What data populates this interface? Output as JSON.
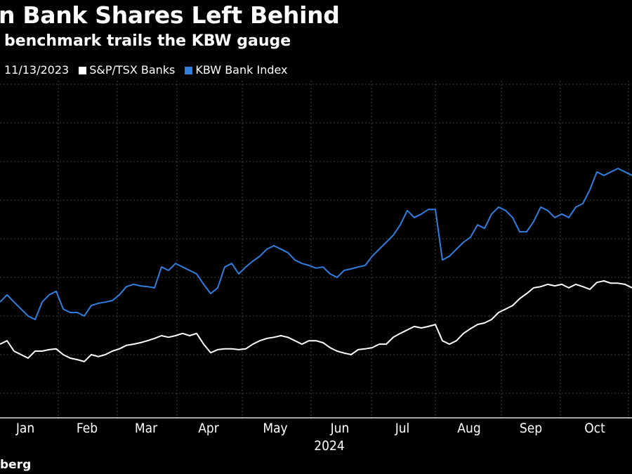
{
  "title": "n Bank Shares Left Behind",
  "subtitle": "benchmark trails the KBW gauge",
  "footer": "berg",
  "chart_data": {
    "type": "line",
    "title": "n Bank Shares Left Behind",
    "subtitle": "benchmark trails the KBW gauge",
    "start_label": "11/13/2023",
    "xlabel": "2024",
    "ylabel": "",
    "x_ticks": [
      "Jan",
      "Feb",
      "Mar",
      "Apr",
      "May",
      "Jun",
      "Jul",
      "Aug",
      "Sep",
      "Oct"
    ],
    "ylim": [
      95,
      185
    ],
    "grid": true,
    "legend_position": "top-left",
    "series": [
      {
        "name": "S&P/TSX Banks",
        "color": "#ffffff",
        "values": [
          112.7,
          113.6,
          110.9,
          110,
          109.1,
          110.9,
          110.9,
          111.3,
          111.5,
          110,
          109.1,
          108.7,
          108.2,
          110,
          109.5,
          110,
          110.9,
          111.5,
          112.4,
          112.7,
          113.1,
          113.6,
          114.2,
          114.9,
          114.5,
          114.9,
          115.5,
          114.9,
          115.5,
          112.7,
          110.5,
          111.3,
          111.5,
          111.5,
          111.3,
          111.5,
          112.7,
          113.6,
          114.2,
          114.5,
          114.9,
          114.5,
          113.6,
          112.7,
          113.6,
          113.6,
          113.1,
          111.8,
          110.9,
          110.4,
          110,
          111.3,
          111.5,
          111.8,
          112.7,
          112.7,
          114.5,
          115.5,
          116.4,
          117.3,
          116.9,
          117.3,
          117.8,
          113.6,
          112.7,
          113.6,
          115.5,
          116.7,
          117.8,
          118.2,
          119.1,
          120.9,
          121.8,
          122.7,
          124.5,
          125.8,
          127.3,
          127.6,
          128.2,
          127.8,
          128.2,
          127.3,
          128.2,
          127.6,
          126.9,
          128.7,
          129.1,
          128.5,
          128.5,
          128.2,
          127.3
        ]
      },
      {
        "name": "KBW Bank Index",
        "color": "#2f7fe0",
        "values": [
          123.6,
          125.5,
          123.6,
          121.8,
          120,
          119.1,
          123.6,
          125.5,
          126.4,
          121.8,
          120.9,
          120.9,
          120,
          122.7,
          123.3,
          123.6,
          124,
          125.5,
          127.6,
          128.2,
          127.8,
          127.6,
          127.3,
          132.7,
          131.8,
          133.6,
          132.7,
          131.8,
          130.9,
          128.2,
          125.8,
          127.3,
          132.7,
          133.6,
          130.9,
          132.7,
          134.2,
          135.5,
          137.3,
          138.2,
          137.3,
          136.4,
          134.5,
          133.6,
          133.1,
          132.4,
          132.7,
          130.9,
          130,
          131.8,
          132.2,
          132.7,
          133.1,
          135.5,
          137.3,
          139.1,
          140.9,
          143.6,
          147.3,
          145.5,
          146.4,
          147.6,
          147.6,
          134.5,
          135.5,
          137.3,
          139.1,
          140.4,
          143.6,
          142.7,
          146.4,
          148.2,
          147.3,
          145.5,
          141.8,
          141.8,
          144.5,
          148.2,
          147.3,
          145.5,
          146.4,
          145.5,
          148.2,
          149.1,
          152.7,
          157.3,
          156.4,
          157.3,
          158.2,
          157.3,
          156.4
        ]
      }
    ]
  }
}
